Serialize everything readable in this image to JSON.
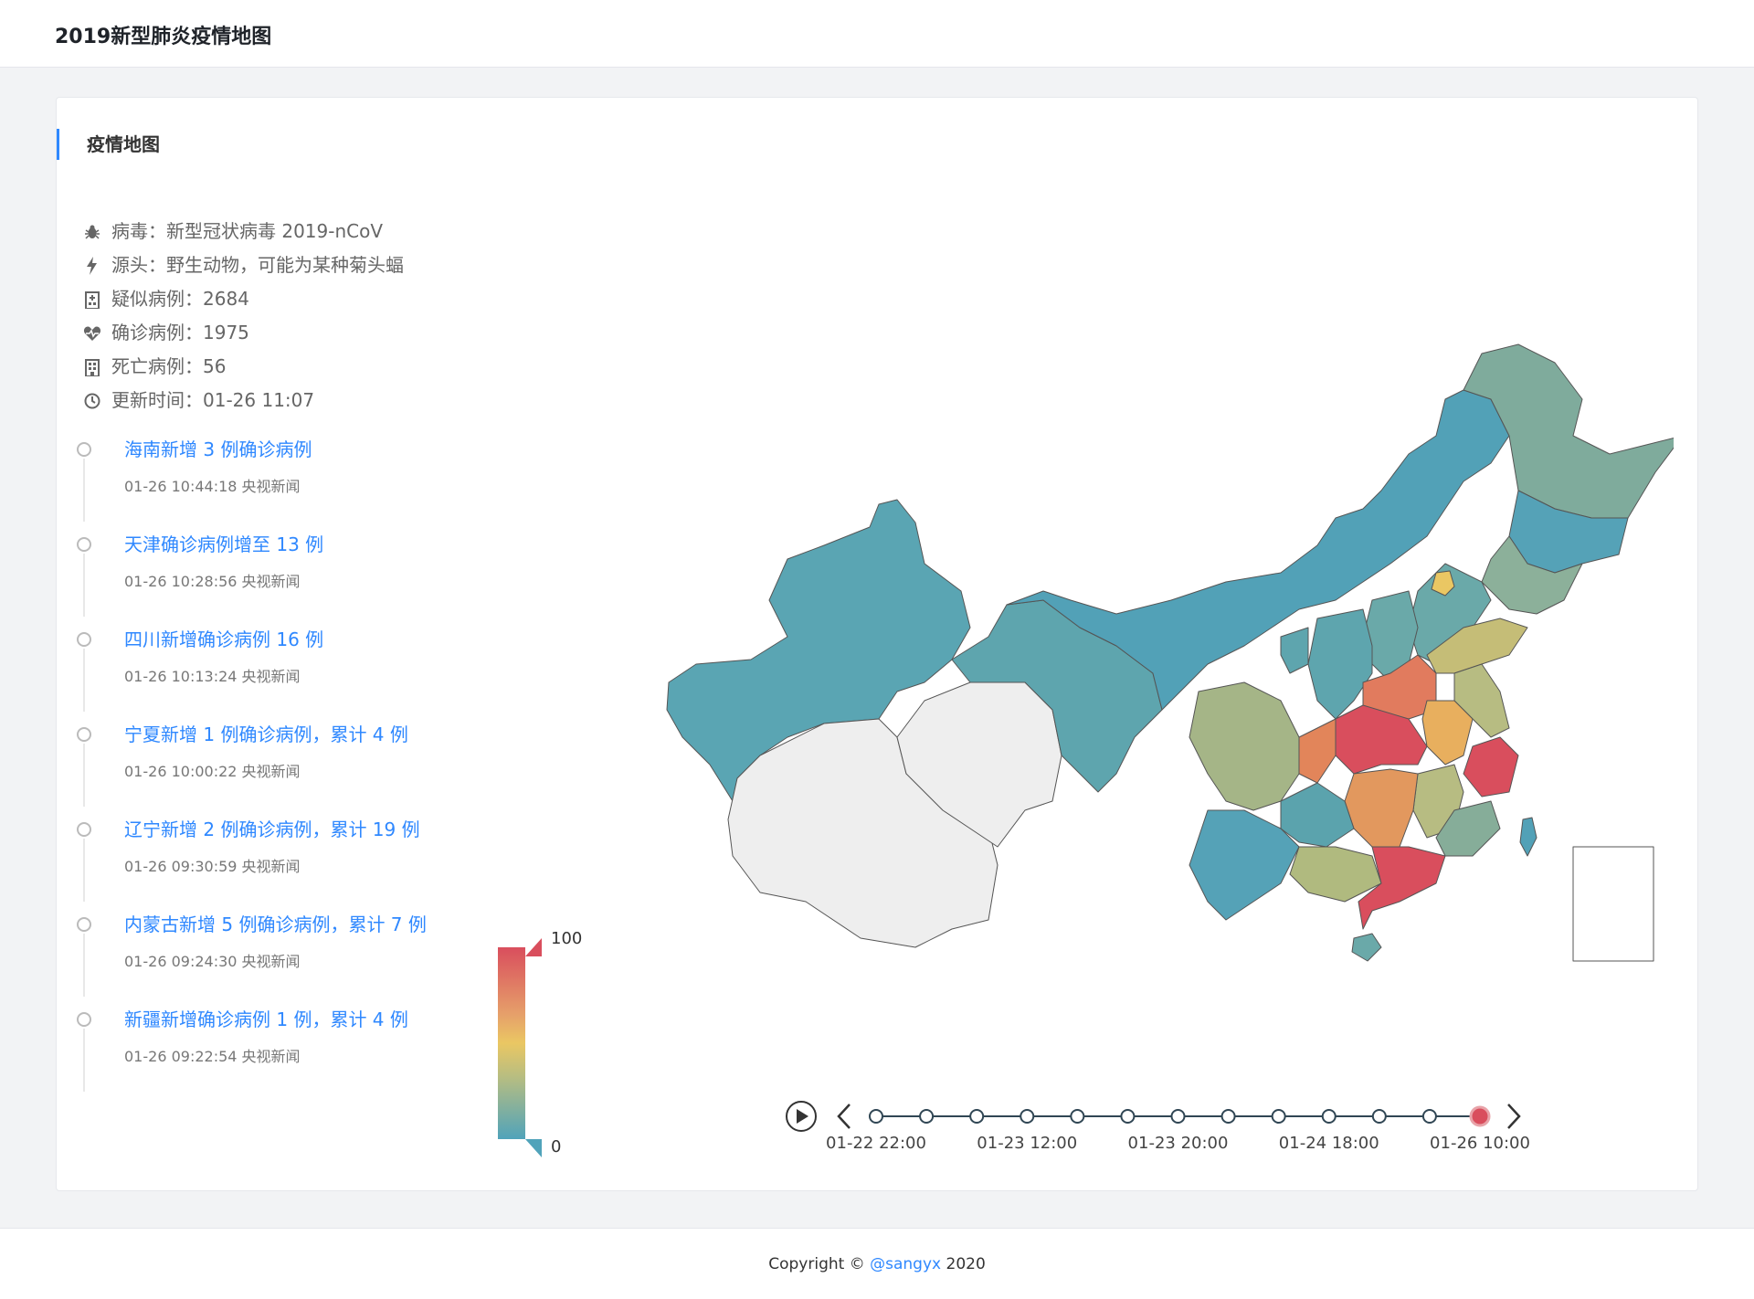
{
  "header": {
    "title": "2019新型肺炎疫情地图"
  },
  "card": {
    "title": "疫情地图"
  },
  "info": [
    {
      "icon": "bug-icon",
      "text": "病毒：新型冠状病毒 2019-nCoV"
    },
    {
      "icon": "bolt-icon",
      "text": "源头：野生动物，可能为某种菊头蝠"
    },
    {
      "icon": "hospital-icon",
      "text": "疑似病例：2684"
    },
    {
      "icon": "heartbeat-icon",
      "text": "确诊病例：1975"
    },
    {
      "icon": "building-icon",
      "text": "死亡病例：56"
    },
    {
      "icon": "clock-icon",
      "text": "更新时间：01-26 11:07"
    }
  ],
  "news": [
    {
      "title": "海南新增 3 例确诊病例",
      "meta": "01-26 10:44:18 央视新闻"
    },
    {
      "title": "天津确诊病例增至 13 例",
      "meta": "01-26 10:28:56 央视新闻"
    },
    {
      "title": "四川新增确诊病例 16 例",
      "meta": "01-26 10:13:24 央视新闻"
    },
    {
      "title": "宁夏新增 1 例确诊病例，累计 4 例",
      "meta": "01-26 10:00:22 央视新闻"
    },
    {
      "title": "辽宁新增 2 例确诊病例，累计 19 例",
      "meta": "01-26 09:30:59 央视新闻"
    },
    {
      "title": "内蒙古新增 5 例确诊病例，累计 7 例",
      "meta": "01-26 09:24:30 央视新闻"
    },
    {
      "title": "新疆新增确诊病例 1 例，累计 4 例",
      "meta": "01-26 09:22:54 央视新闻"
    }
  ],
  "legend": {
    "max": "100",
    "min": "0"
  },
  "colors": {
    "accent": "#2f88ff",
    "high": "#d94e5d",
    "mid": "#eac763",
    "low": "#50a3ba",
    "nodata": "#eeeeee"
  },
  "timeline": {
    "labels": [
      "01-22 22:00",
      "01-23 12:00",
      "01-23 20:00",
      "01-24 18:00",
      "01-26 10:00"
    ],
    "node_count": 13,
    "current_index": 12
  },
  "footer": {
    "prefix": "Copyright ©",
    "link": "@sangyx",
    "suffix": "2020"
  }
}
